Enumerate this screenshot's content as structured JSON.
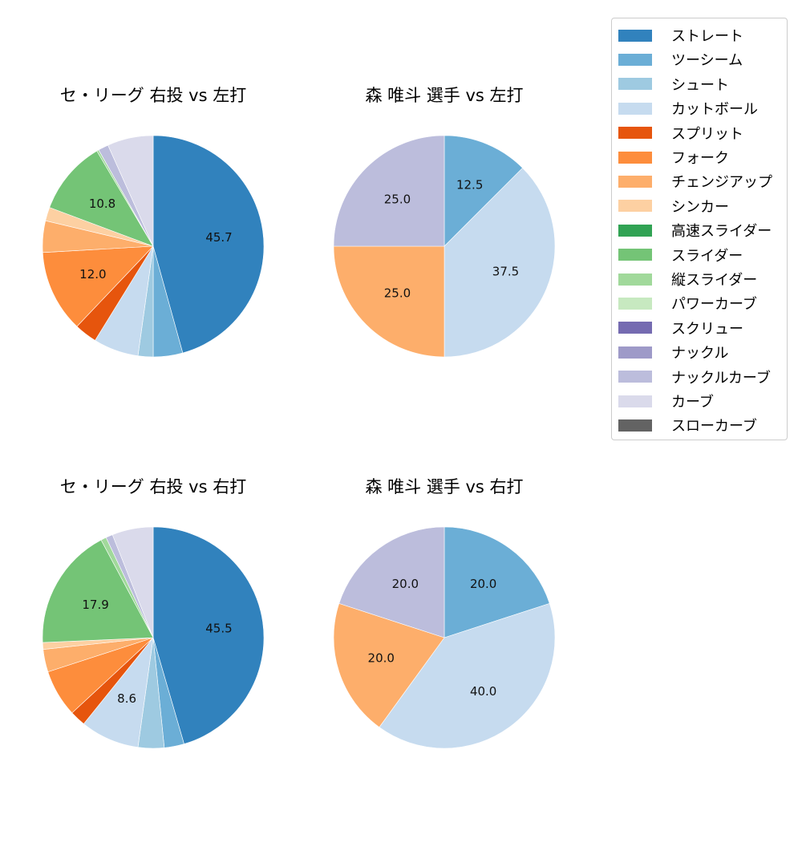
{
  "legend": {
    "items": [
      {
        "label": "ストレート",
        "color": "#3182bd"
      },
      {
        "label": "ツーシーム",
        "color": "#6baed6"
      },
      {
        "label": "シュート",
        "color": "#9ecae1"
      },
      {
        "label": "カットボール",
        "color": "#c6dbef"
      },
      {
        "label": "スプリット",
        "color": "#e6550d"
      },
      {
        "label": "フォーク",
        "color": "#fd8d3c"
      },
      {
        "label": "チェンジアップ",
        "color": "#fdae6b"
      },
      {
        "label": "シンカー",
        "color": "#fdd0a2"
      },
      {
        "label": "高速スライダー",
        "color": "#31a354"
      },
      {
        "label": "スライダー",
        "color": "#74c476"
      },
      {
        "label": "縦スライダー",
        "color": "#a1d99b"
      },
      {
        "label": "パワーカーブ",
        "color": "#c7e9c0"
      },
      {
        "label": "スクリュー",
        "color": "#756bb1"
      },
      {
        "label": "ナックル",
        "color": "#9e9ac8"
      },
      {
        "label": "ナックルカーブ",
        "color": "#bcbddc"
      },
      {
        "label": "カーブ",
        "color": "#dadaeb"
      },
      {
        "label": "スローカーブ",
        "color": "#636363"
      }
    ]
  },
  "chart_data": [
    {
      "type": "pie",
      "title": "セ・リーグ 右投 vs 左打",
      "categories": [
        "ストレート",
        "ツーシーム",
        "シュート",
        "カットボール",
        "スプリット",
        "フォーク",
        "チェンジアップ",
        "シンカー",
        "スライダー",
        "縦スライダー",
        "ナックルカーブ",
        "カーブ"
      ],
      "values": [
        45.7,
        4.3,
        2.2,
        6.6,
        3.3,
        12.0,
        4.6,
        2.0,
        10.8,
        0.3,
        1.5,
        6.7
      ],
      "labels_shown": [
        "45.7",
        "",
        "",
        "",
        "",
        "12.0",
        "",
        "",
        "10.8",
        "",
        "",
        ""
      ],
      "colors": [
        "#3182bd",
        "#6baed6",
        "#9ecae1",
        "#c6dbef",
        "#e6550d",
        "#fd8d3c",
        "#fdae6b",
        "#fdd0a2",
        "#74c476",
        "#a1d99b",
        "#bcbddc",
        "#dadaeb"
      ],
      "start_angle": 90,
      "direction": "clockwise"
    },
    {
      "type": "pie",
      "title": "森 唯斗 選手 vs 左打",
      "categories": [
        "ツーシーム",
        "カットボール",
        "チェンジアップ",
        "ナックルカーブ"
      ],
      "values": [
        12.5,
        37.5,
        25.0,
        25.0
      ],
      "labels_shown": [
        "12.5",
        "37.5",
        "25.0",
        "25.0"
      ],
      "colors": [
        "#6baed6",
        "#c6dbef",
        "#fdae6b",
        "#bcbddc"
      ],
      "start_angle": 90,
      "direction": "clockwise"
    },
    {
      "type": "pie",
      "title": "セ・リーグ 右投 vs 右打",
      "categories": [
        "ストレート",
        "ツーシーム",
        "シュート",
        "カットボール",
        "スプリット",
        "フォーク",
        "チェンジアップ",
        "シンカー",
        "スライダー",
        "縦スライダー",
        "ナックルカーブ",
        "カーブ"
      ],
      "values": [
        45.5,
        2.9,
        3.8,
        8.6,
        2.3,
        6.9,
        3.3,
        1.0,
        17.9,
        0.8,
        1.0,
        6.0
      ],
      "labels_shown": [
        "45.5",
        "",
        "",
        "8.6",
        "",
        "",
        "",
        "",
        "17.9",
        "",
        "",
        ""
      ],
      "colors": [
        "#3182bd",
        "#6baed6",
        "#9ecae1",
        "#c6dbef",
        "#e6550d",
        "#fd8d3c",
        "#fdae6b",
        "#fdd0a2",
        "#74c476",
        "#a1d99b",
        "#bcbddc",
        "#dadaeb"
      ],
      "start_angle": 90,
      "direction": "clockwise"
    },
    {
      "type": "pie",
      "title": "森 唯斗 選手 vs 右打",
      "categories": [
        "ツーシーム",
        "カットボール",
        "チェンジアップ",
        "ナックルカーブ"
      ],
      "values": [
        20.0,
        40.0,
        20.0,
        20.0
      ],
      "labels_shown": [
        "20.0",
        "40.0",
        "20.0",
        "20.0"
      ],
      "colors": [
        "#6baed6",
        "#c6dbef",
        "#fdae6b",
        "#bcbddc"
      ],
      "start_angle": 90,
      "direction": "clockwise"
    }
  ]
}
